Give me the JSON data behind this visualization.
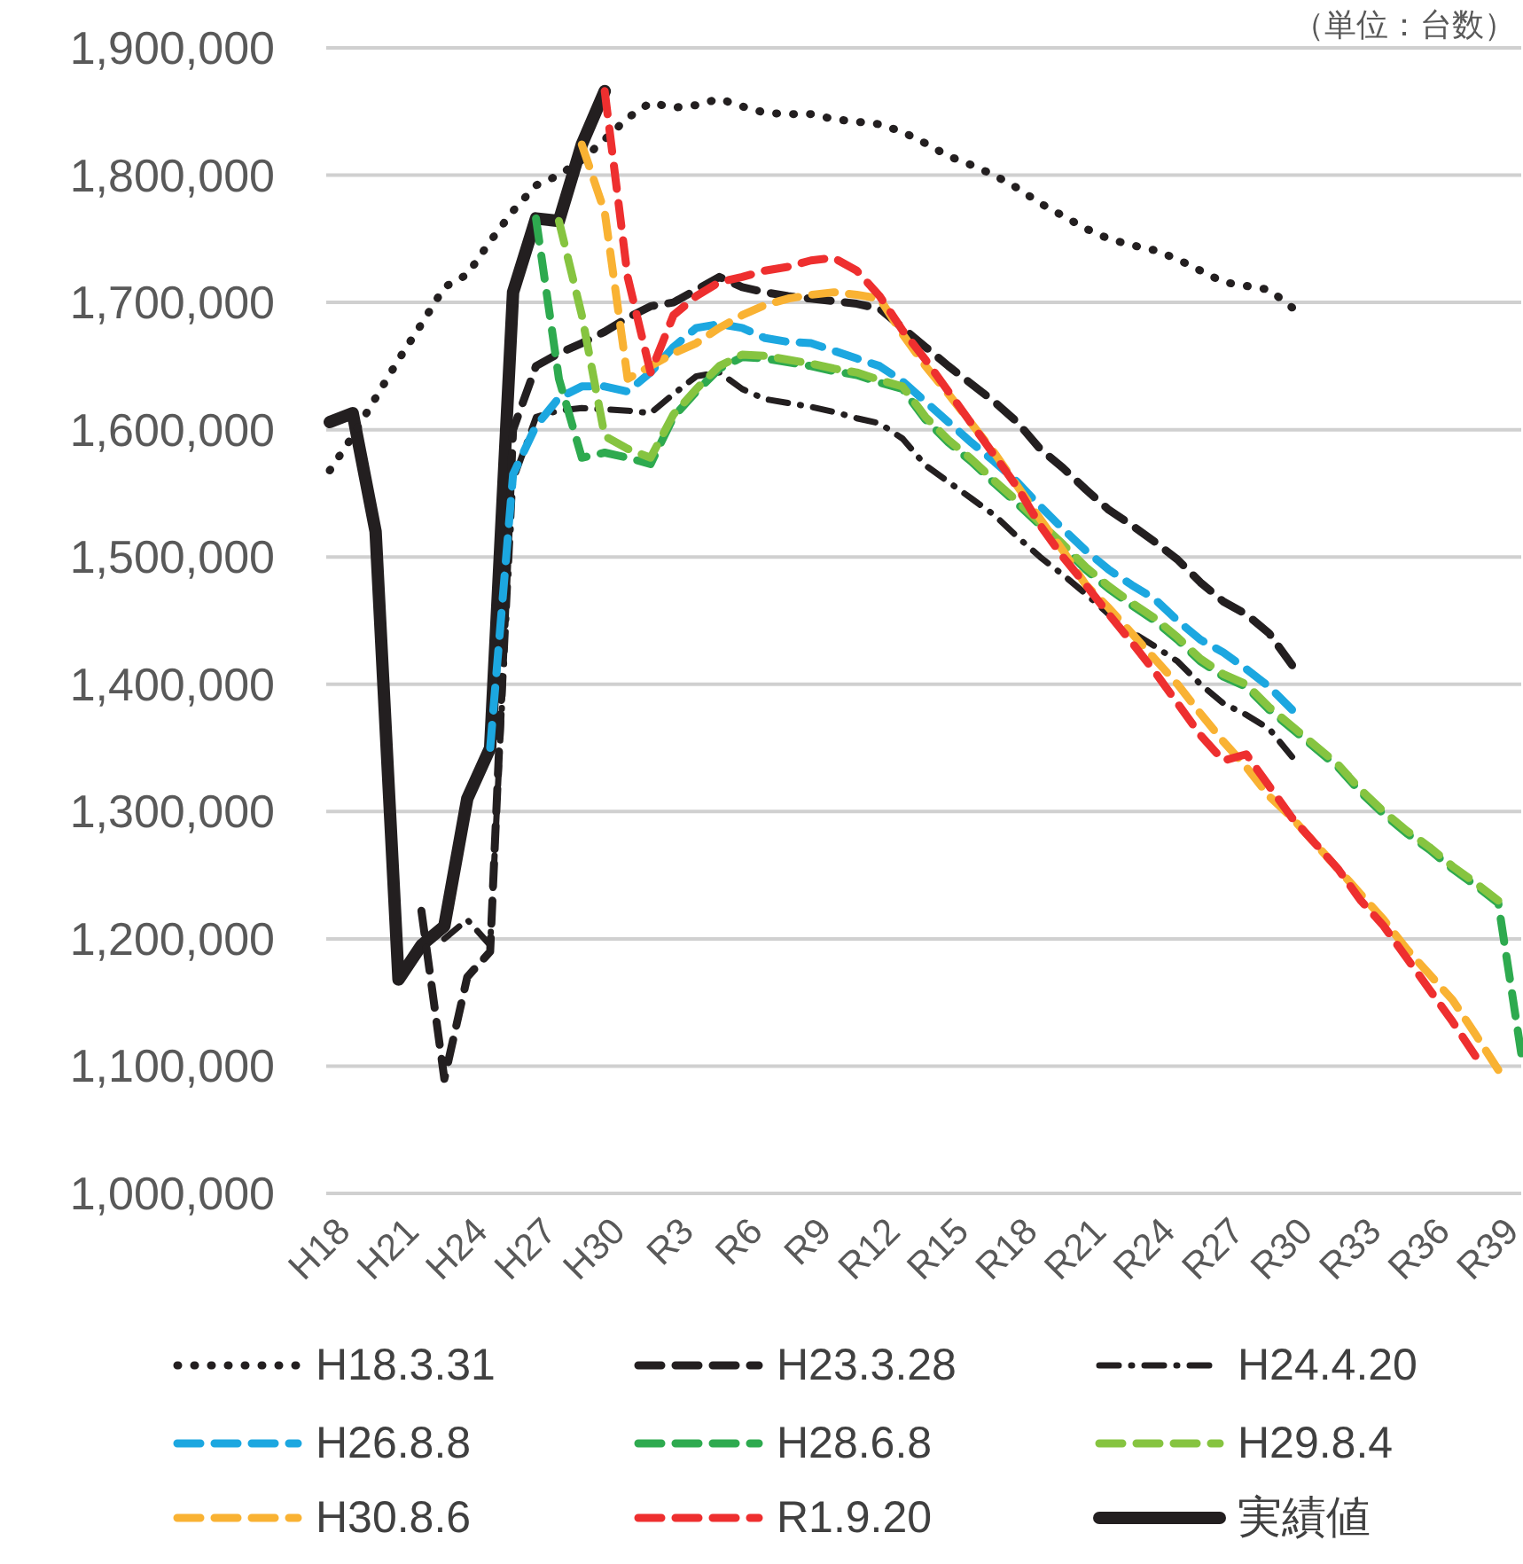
{
  "chart_data": {
    "type": "line",
    "annotations": [
      "（単位：台数）"
    ],
    "categories": [
      "H18",
      null,
      null,
      "H21",
      null,
      null,
      "H24",
      null,
      null,
      "H27",
      null,
      null,
      "H30",
      null,
      null,
      "R3",
      null,
      null,
      "R6",
      null,
      null,
      "R9",
      null,
      null,
      "R12",
      null,
      null,
      "R15",
      null,
      null,
      "R18",
      null,
      null,
      "R21",
      null,
      null,
      "R24",
      null,
      null,
      "R27",
      null,
      null,
      "R30",
      null,
      null,
      "R33",
      null,
      null,
      "R36",
      null,
      null,
      "R39",
      null
    ],
    "ylim": [
      1000000,
      1900000
    ],
    "yticks": [
      {
        "value": 1000000,
        "label": "1,000,000"
      },
      {
        "value": 1100000,
        "label": "1,100,000"
      },
      {
        "value": 1200000,
        "label": "1,200,000"
      },
      {
        "value": 1300000,
        "label": "1,300,000"
      },
      {
        "value": 1400000,
        "label": "1,400,000"
      },
      {
        "value": 1500000,
        "label": "1,500,000"
      },
      {
        "value": 1600000,
        "label": "1,600,000"
      },
      {
        "value": 1700000,
        "label": "1,700,000"
      },
      {
        "value": 1800000,
        "label": "1,800,000"
      },
      {
        "value": 1900000,
        "label": "1,900,000"
      }
    ],
    "grid": "y",
    "legend": "bottom",
    "series": [
      {
        "name": "H18.3.31",
        "color": "#231f20",
        "line_style": "dotted",
        "values": [
          1568000,
          1595000,
          1625000,
          1655000,
          1683000,
          1712000,
          1722000,
          1748000,
          1772000,
          1792000,
          1800000,
          1812000,
          1828000,
          1845000,
          1857000,
          1853000,
          1855000,
          1860000,
          1854000,
          1849000,
          1848000,
          1848000,
          1844000,
          1842000,
          1840000,
          1834000,
          1825000,
          1815000,
          1808000,
          1800000,
          1790000,
          1778000,
          1768000,
          1758000,
          1750000,
          1745000,
          1741000,
          1734000,
          1725000,
          1716000,
          1713000,
          1710000,
          1696000,
          null,
          null,
          null,
          null,
          null,
          null,
          null,
          null,
          null,
          null
        ]
      },
      {
        "name": "H23.3.28",
        "color": "#231f20",
        "line_style": "dashed",
        "values": [
          null,
          null,
          null,
          null,
          1222000,
          1090000,
          1170000,
          1190000,
          1600000,
          1650000,
          1660000,
          1668000,
          1677000,
          1688000,
          1697000,
          1700000,
          1710000,
          1720000,
          1712000,
          1708000,
          1705000,
          1703000,
          1701000,
          1699000,
          1695000,
          1680000,
          1665000,
          1650000,
          1636000,
          1622000,
          1606000,
          1585000,
          1570000,
          1553000,
          1537000,
          1525000,
          1512000,
          1498000,
          1480000,
          1465000,
          1455000,
          1440000,
          1415000,
          null,
          null,
          null,
          null,
          null,
          null,
          null,
          null,
          null,
          null
        ]
      },
      {
        "name": "H24.4.20",
        "color": "#231f20",
        "line_style": "dashdot",
        "values": [
          null,
          null,
          null,
          null,
          null,
          1200000,
          1215000,
          1195000,
          1560000,
          1610000,
          1615000,
          1617000,
          1616000,
          1615000,
          1613000,
          1628000,
          1642000,
          1645000,
          1632000,
          1624000,
          1621000,
          1618000,
          1614000,
          1609000,
          1605000,
          1593000,
          1572000,
          1559000,
          1546000,
          1533000,
          1516000,
          1500000,
          1486000,
          1471000,
          1455000,
          1441000,
          1430000,
          1418000,
          1400000,
          1385000,
          1376000,
          1365000,
          1343000,
          null,
          null,
          null,
          null,
          null,
          null,
          null,
          null,
          null,
          null
        ]
      },
      {
        "name": "H26.8.8",
        "color": "#1ca7e0",
        "line_style": "dashed",
        "values": [
          null,
          null,
          null,
          null,
          null,
          null,
          null,
          1350000,
          1565000,
          1603000,
          1625000,
          1634000,
          1634000,
          1630000,
          1645000,
          1665000,
          1680000,
          1683000,
          1680000,
          1672000,
          1669000,
          1668000,
          1662000,
          1656000,
          1650000,
          1638000,
          1622000,
          1606000,
          1590000,
          1575000,
          1559000,
          1540000,
          1522000,
          1505000,
          1490000,
          1478000,
          1467000,
          1450000,
          1435000,
          1425000,
          1412000,
          1398000,
          1380000,
          null,
          null,
          null,
          null,
          null,
          null,
          null,
          null,
          null,
          null
        ]
      },
      {
        "name": "H28.6.8",
        "color": "#2eaa4f",
        "line_style": "dashed",
        "values": [
          null,
          null,
          null,
          null,
          null,
          null,
          null,
          null,
          null,
          1766000,
          1640000,
          1578000,
          1582000,
          1578000,
          1573000,
          1610000,
          1630000,
          1648000,
          1657000,
          1656000,
          1653000,
          1650000,
          1646000,
          1643000,
          1637000,
          1632000,
          1608000,
          1590000,
          1575000,
          1558000,
          1542000,
          1525000,
          1508000,
          1490000,
          1475000,
          1462000,
          1450000,
          1435000,
          1418000,
          1406000,
          1398000,
          1380000,
          1365000,
          1350000,
          1335000,
          1315000,
          1298000,
          1283000,
          1270000,
          1255000,
          1242000,
          1228000,
          1110000
        ]
      },
      {
        "name": "H29.8.4",
        "color": "#86c440",
        "line_style": "dashed",
        "values": [
          null,
          null,
          null,
          null,
          null,
          null,
          null,
          null,
          null,
          null,
          1764000,
          1690000,
          1595000,
          1585000,
          1578000,
          1612000,
          1632000,
          1650000,
          1659000,
          1658000,
          1655000,
          1652000,
          1648000,
          1645000,
          1639000,
          1634000,
          1610000,
          1592000,
          1577000,
          1560000,
          1544000,
          1527000,
          1510000,
          1492000,
          1477000,
          1464000,
          1452000,
          1437000,
          1420000,
          1408000,
          1400000,
          1382000,
          1367000,
          1352000,
          1337000,
          1317000,
          1300000,
          1285000,
          1272000,
          1257000,
          1244000,
          1230000,
          null
        ]
      },
      {
        "name": "H30.8.6",
        "color": "#f9b233",
        "line_style": "dashed",
        "values": [
          null,
          null,
          null,
          null,
          null,
          null,
          null,
          null,
          null,
          null,
          null,
          1824000,
          1771000,
          1640000,
          1650000,
          1660000,
          1668000,
          1680000,
          1690000,
          1698000,
          1703000,
          1706000,
          1708000,
          1706000,
          1703000,
          1675000,
          1650000,
          1628000,
          1605000,
          1582000,
          1556000,
          1530000,
          1505000,
          1478000,
          1460000,
          1440000,
          1420000,
          1400000,
          1377000,
          1355000,
          1335000,
          1312000,
          1295000,
          1275000,
          1255000,
          1235000,
          1215000,
          1192000,
          1172000,
          1152000,
          1125000,
          1097000,
          null
        ]
      },
      {
        "name": "R1.9.20",
        "color": "#ee2f2f",
        "line_style": "dashed",
        "values": [
          null,
          null,
          null,
          null,
          null,
          null,
          null,
          null,
          null,
          null,
          null,
          null,
          1866000,
          1720000,
          1645000,
          1690000,
          1705000,
          1716000,
          1720000,
          1725000,
          1728000,
          1733000,
          1735000,
          1725000,
          1705000,
          1678000,
          1655000,
          1630000,
          1605000,
          1580000,
          1555000,
          1525000,
          1500000,
          1478000,
          1455000,
          1433000,
          1410000,
          1385000,
          1360000,
          1340000,
          1345000,
          1320000,
          1295000,
          1275000,
          1255000,
          1230000,
          1210000,
          1185000,
          1160000,
          1135000,
          1108000,
          null,
          null
        ]
      },
      {
        "name": "実績値",
        "color": "#231f20",
        "line_style": "solid",
        "values": [
          1606000,
          1613000,
          1520000,
          1168000,
          1195000,
          1210000,
          1310000,
          1350000,
          1708000,
          1766000,
          1764000,
          1824000,
          1866000,
          null,
          null,
          null,
          null,
          null,
          null,
          null,
          null,
          null,
          null,
          null,
          null,
          null,
          null,
          null,
          null,
          null,
          null,
          null,
          null,
          null,
          null,
          null,
          null,
          null,
          null,
          null,
          null,
          null,
          null,
          null,
          null,
          null,
          null,
          null,
          null,
          null,
          null,
          null,
          null
        ]
      }
    ]
  }
}
